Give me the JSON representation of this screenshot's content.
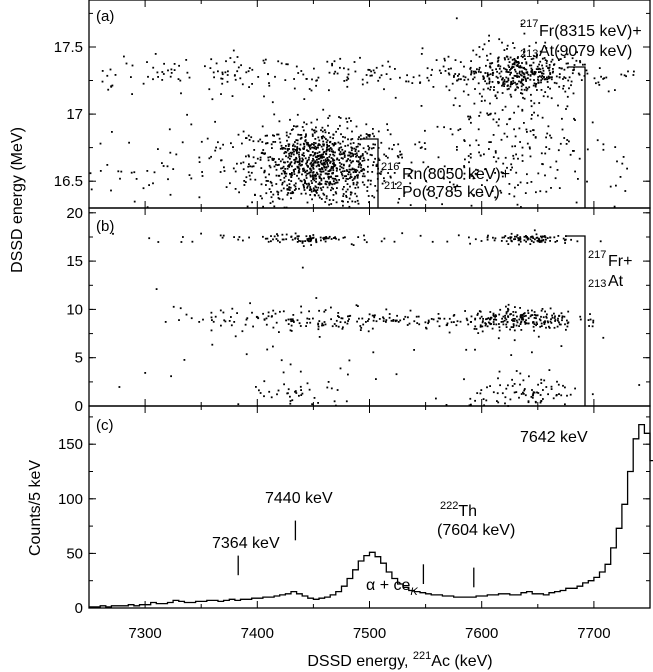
{
  "chart_data": [
    {
      "panel": "(a)",
      "type": "scatter",
      "xlim": [
        7250,
        7750
      ],
      "ylim": [
        16.3,
        17.85
      ],
      "yticks": [
        16.5,
        17,
        17.5
      ],
      "ytick_labels": [
        "16.5",
        "17",
        "17.5"
      ],
      "grid": false,
      "clusters": [
        {
          "x": 7455,
          "y": 16.62,
          "sx": 30,
          "sy": 0.15,
          "n": 900,
          "note": "dense"
        },
        {
          "x": 7520,
          "y": 16.6,
          "sx": 260,
          "sy": 0.18,
          "n": 380
        },
        {
          "x": 7635,
          "y": 17.3,
          "sx": 25,
          "sy": 0.08,
          "n": 320
        },
        {
          "x": 7470,
          "y": 17.3,
          "sx": 180,
          "sy": 0.07,
          "n": 300
        },
        {
          "x": 7620,
          "y": 16.95,
          "sx": 30,
          "sy": 0.35,
          "n": 220
        }
      ],
      "annotations": [
        {
          "lines": [
            "217Fr(8315 keV)+",
            "213At(9079 keV)"
          ],
          "bracket_y": [
            16.3,
            17.45
          ]
        },
        {
          "lines": [
            "216Rn(8050 keV)+",
            "212Po(8785 keV)"
          ],
          "bracket_y": [
            16.3,
            16.88
          ]
        }
      ]
    },
    {
      "panel": "(b)",
      "type": "scatter",
      "xlim": [
        7250,
        7750
      ],
      "ylim": [
        0,
        20.5
      ],
      "yticks": [
        0,
        5,
        10,
        15,
        20
      ],
      "ytick_labels": [
        "0",
        "5",
        "10",
        "15",
        "20"
      ],
      "grid": false,
      "clusters": [
        {
          "x": 7445,
          "y": 17.3,
          "sx": 18,
          "sy": 0.25,
          "n": 70
        },
        {
          "x": 7640,
          "y": 17.3,
          "sx": 20,
          "sy": 0.25,
          "n": 95
        },
        {
          "x": 7400,
          "y": 17.3,
          "sx": 120,
          "sy": 0.3,
          "n": 45
        },
        {
          "x": 7450,
          "y": 9.0,
          "sx": 60,
          "sy": 0.6,
          "n": 140
        },
        {
          "x": 7635,
          "y": 9.0,
          "sx": 25,
          "sy": 0.6,
          "n": 200
        },
        {
          "x": 7560,
          "y": 8.8,
          "sx": 60,
          "sy": 0.4,
          "n": 60
        },
        {
          "x": 7640,
          "y": 1.0,
          "sx": 25,
          "sy": 1.0,
          "n": 100
        },
        {
          "x": 7440,
          "y": 1.0,
          "sx": 25,
          "sy": 1.0,
          "n": 40
        },
        {
          "x": 7500,
          "y": 4.0,
          "sx": 150,
          "sy": 4.0,
          "n": 60
        }
      ],
      "annotations": [
        {
          "lines": [
            "217Fr+",
            "213At"
          ],
          "bracket_y": [
            0,
            18.0
          ]
        }
      ]
    },
    {
      "panel": "(c)",
      "type": "line",
      "step": true,
      "xlabel": "DSSD energy, 221Ac (keV)",
      "ylabel": "Counts/5 keV",
      "xlim": [
        7250,
        7750
      ],
      "ylim": [
        0,
        185
      ],
      "xticks": [
        7300,
        7400,
        7500,
        7600,
        7700
      ],
      "xtick_labels": [
        "7300",
        "7400",
        "7500",
        "7600",
        "7700"
      ],
      "yticks": [
        0,
        50,
        100,
        150
      ],
      "ytick_labels": [
        "0",
        "50",
        "100",
        "150"
      ],
      "grid": false,
      "bin_width": 5,
      "x_start": 7250,
      "values": [
        1,
        1,
        2,
        1,
        2,
        2,
        2,
        3,
        2,
        3,
        3,
        5,
        4,
        4,
        5,
        7,
        6,
        5,
        5,
        6,
        6,
        7,
        7,
        6,
        7,
        8,
        7,
        8,
        8,
        9,
        9,
        10,
        10,
        11,
        12,
        13,
        15,
        13,
        11,
        9,
        8,
        9,
        10,
        12,
        15,
        20,
        27,
        35,
        43,
        48,
        51,
        47,
        41,
        33,
        27,
        22,
        19,
        16,
        15,
        14,
        13,
        12,
        12,
        11,
        11,
        10,
        10,
        10,
        10,
        11,
        11,
        12,
        12,
        13,
        13,
        12,
        12,
        14,
        15,
        13,
        13,
        12,
        14,
        15,
        16,
        18,
        18,
        20,
        23,
        25,
        28,
        33,
        40,
        55,
        73,
        95,
        125,
        155,
        168,
        160,
        135,
        105,
        75,
        52,
        38,
        26,
        19,
        15,
        13,
        11,
        10,
        8,
        7,
        6,
        5,
        5,
        5,
        4,
        4,
        3,
        3
      ],
      "peak_labels": [
        {
          "text": "7364 keV",
          "x": 7383,
          "marker_top": 48
        },
        {
          "text": "7440 keV",
          "x": 7434,
          "marker_top": 80
        },
        {
          "text": "α + ceK",
          "x": 7548,
          "marker_top": 40
        },
        {
          "text": "222Th",
          "x": 7593,
          "marker_top": 37
        },
        {
          "text": "(7604 keV)",
          "x": 7593
        },
        {
          "text": "7642 keV",
          "x": 7660
        }
      ]
    }
  ],
  "shared_ylabel": "DSSD energy (MeV)",
  "panel_labels": [
    "(a)",
    "(b)",
    "(c)"
  ],
  "ann_a1": {
    "sup1": "217",
    "t1": "Fr(8315 keV)+",
    "sub2": "213",
    "t2": "At(9079 keV)"
  },
  "ann_a2": {
    "sup1": "216",
    "t1": "Rn(8050 keV)+",
    "sub2": "212",
    "t2": "Po(8785 keV)"
  },
  "ann_b": {
    "sup1": "217",
    "t1": "Fr+",
    "sub2": "213",
    "t2": "At"
  },
  "c_labels": {
    "p7364": "7364 keV",
    "p7440": "7440 keV",
    "p7642": "7642 keV",
    "th_sup": "222",
    "th_el": "Th",
    "th_energy": "(7604 keV)",
    "ce_alpha": "α + ce",
    "ce_sub": "K"
  },
  "xlabel_parts": {
    "pre": "DSSD energy, ",
    "sup": "221",
    "post": "Ac (keV)"
  },
  "c_ylabel": "Counts/5 keV"
}
